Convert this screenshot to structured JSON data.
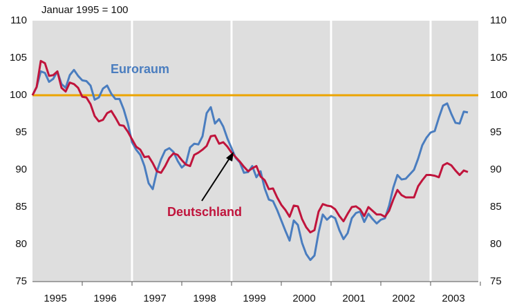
{
  "chart_data": {
    "type": "line",
    "subtitle": "Januar 1995 = 100",
    "categories": [
      null,
      null,
      null,
      null,
      null,
      null,
      "1995",
      null,
      null,
      null,
      null,
      null,
      null,
      null,
      null,
      null,
      null,
      null,
      "1996",
      null,
      null,
      null,
      null,
      null,
      null,
      null,
      null,
      null,
      null,
      null,
      "1997",
      null,
      null,
      null,
      null,
      null,
      null,
      null,
      null,
      null,
      null,
      null,
      "1998",
      null,
      null,
      null,
      null,
      null,
      null,
      null,
      null,
      null,
      null,
      null,
      "1999",
      null,
      null,
      null,
      null,
      null,
      null,
      null,
      null,
      null,
      null,
      null,
      "2000",
      null,
      null,
      null,
      null,
      null,
      null,
      null,
      null,
      null,
      null,
      null,
      "2001",
      null,
      null,
      null,
      null,
      null,
      null,
      null,
      null,
      null,
      null,
      null,
      "2002",
      null,
      null,
      null,
      null,
      null,
      null,
      null,
      null,
      null,
      null,
      null,
      "2003",
      null,
      null,
      null
    ],
    "series": [
      {
        "name": "Euroraum",
        "color": "#4a7dbf",
        "values": [
          100,
          101.1,
          103.2,
          103,
          101.8,
          102.2,
          103.2,
          101.5,
          101,
          102.7,
          103.4,
          102.6,
          102,
          101.9,
          101.3,
          99.4,
          99.7,
          100.9,
          101.3,
          100.2,
          99.5,
          99.5,
          98.1,
          96.2,
          93.7,
          92.7,
          92,
          90.5,
          88.2,
          87.4,
          89.8,
          91.4,
          92.6,
          92.9,
          92.4,
          91.2,
          90.3,
          90.8,
          93,
          93.5,
          93.4,
          94.5,
          97.6,
          98.4,
          96.2,
          96.8,
          95.8,
          94.2,
          92.9,
          91.6,
          91,
          89.6,
          89.7,
          90.5,
          89,
          89.8,
          87.5,
          86,
          85.8,
          84.6,
          83.2,
          81.8,
          80.5,
          83.2,
          82.6,
          80.2,
          78.7,
          77.9,
          78.5,
          81.6,
          84,
          83.3,
          83.8,
          83.5,
          81.9,
          80.7,
          81.5,
          83.5,
          84.2,
          84.4,
          83,
          84.1,
          83.4,
          82.8,
          83.3,
          83.5,
          85.2,
          87.6,
          89.3,
          88.7,
          88.8,
          89.4,
          90,
          91.5,
          93.3,
          94.3,
          95,
          95.2,
          97,
          98.6,
          98.9,
          97.5,
          96.3,
          96.2,
          97.8,
          97.7
        ]
      },
      {
        "name": "Deutschland",
        "color": "#c0143c",
        "values": [
          100,
          101.1,
          104.6,
          104.3,
          102.6,
          102.7,
          103.2,
          101,
          100.5,
          101.7,
          101.5,
          101,
          99.8,
          99.7,
          98.8,
          97.2,
          96.5,
          96.7,
          97.6,
          97.9,
          97,
          96,
          95.9,
          95.1,
          94.1,
          93.1,
          92.7,
          91.7,
          91.8,
          90.9,
          89.8,
          89.6,
          90.5,
          91.6,
          92.2,
          92,
          91.3,
          90.7,
          90.5,
          92,
          92.3,
          92.7,
          93.2,
          94.5,
          94.6,
          93.5,
          93.7,
          93.1,
          92.3,
          91.7,
          91.1,
          90.4,
          89.8,
          90.2,
          90.5,
          89.1,
          88.6,
          87.4,
          87.5,
          86.3,
          85.3,
          84.6,
          83.7,
          85.2,
          85.1,
          83.4,
          82.3,
          81.6,
          81.9,
          84.4,
          85.4,
          85.2,
          85.1,
          84.7,
          83.8,
          83.1,
          84.1,
          85,
          85.1,
          84.7,
          83.8,
          85,
          84.5,
          84,
          84,
          83.7,
          84.5,
          86,
          87.3,
          86.6,
          86.3,
          86.3,
          86.3,
          87.8,
          88.6,
          89.3,
          89.3,
          89.2,
          89,
          90.6,
          90.9,
          90.6,
          89.9,
          89.3,
          89.9,
          89.7
        ]
      }
    ],
    "reference_line": {
      "value": 100,
      "color": "#eca400"
    },
    "ylim": [
      75,
      110
    ],
    "yticks": [
      75,
      80,
      85,
      90,
      95,
      100,
      105,
      110
    ],
    "grid": false
  }
}
